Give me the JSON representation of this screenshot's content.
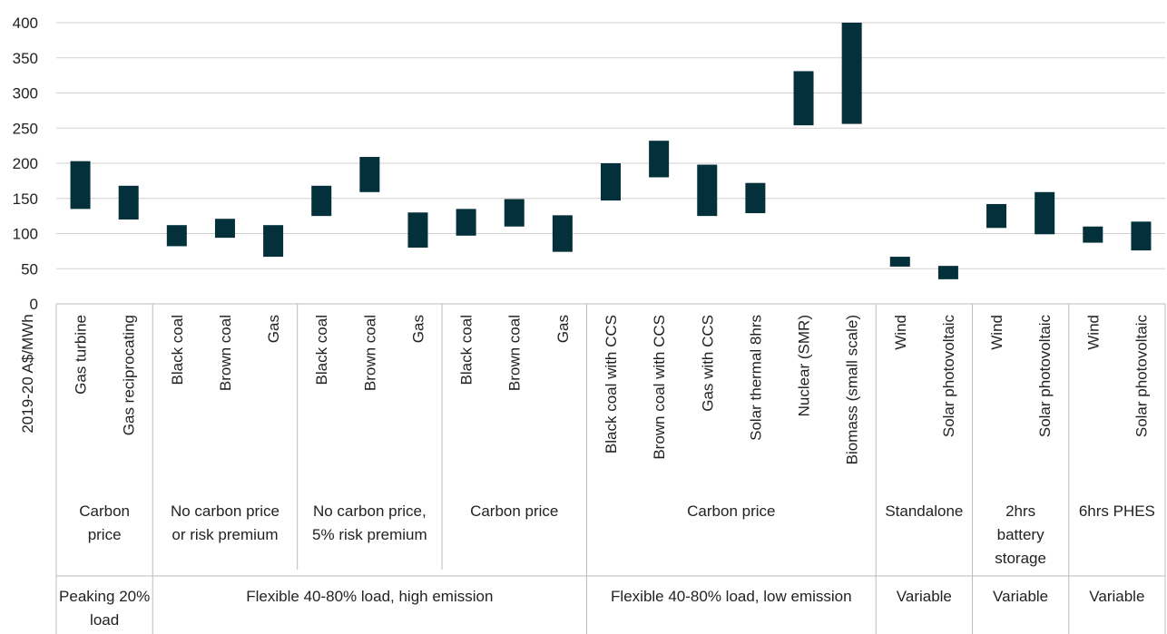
{
  "chart_data": {
    "type": "bar",
    "subtype": "floating-range",
    "ylabel": "2019-20 A$/MWh",
    "ylim": [
      0,
      400
    ],
    "yticks": [
      0,
      50,
      100,
      150,
      200,
      250,
      300,
      350,
      400
    ],
    "grid": true,
    "bar_color": "#03303a",
    "categories": [
      {
        "label": "Gas turbine",
        "low": 135,
        "high": 203
      },
      {
        "label": "Gas reciprocating",
        "low": 120,
        "high": 168
      },
      {
        "label": "Black coal",
        "low": 82,
        "high": 112
      },
      {
        "label": "Brown coal",
        "low": 94,
        "high": 121
      },
      {
        "label": "Gas",
        "low": 67,
        "high": 112
      },
      {
        "label": "Black coal",
        "low": 125,
        "high": 168
      },
      {
        "label": "Brown coal",
        "low": 159,
        "high": 209
      },
      {
        "label": "Gas",
        "low": 80,
        "high": 130
      },
      {
        "label": "Black coal",
        "low": 97,
        "high": 135
      },
      {
        "label": "Brown coal",
        "low": 110,
        "high": 149
      },
      {
        "label": "Gas",
        "low": 74,
        "high": 126
      },
      {
        "label": "Black coal with CCS",
        "low": 147,
        "high": 200
      },
      {
        "label": "Brown coal with CCS",
        "low": 180,
        "high": 232
      },
      {
        "label": "Gas with CCS",
        "low": 125,
        "high": 198
      },
      {
        "label": "Solar thermal 8hrs",
        "low": 129,
        "high": 172
      },
      {
        "label": "Nuclear (SMR)",
        "low": 254,
        "high": 331
      },
      {
        "label": "Biomass (small scale)",
        "low": 256,
        "high": 400
      },
      {
        "label": "Wind",
        "low": 53,
        "high": 67
      },
      {
        "label": "Solar photovoltaic",
        "low": 35,
        "high": 54
      },
      {
        "label": "Wind",
        "low": 108,
        "high": 142
      },
      {
        "label": "Solar photovoltaic",
        "low": 99,
        "high": 159
      },
      {
        "label": "Wind",
        "low": 87,
        "high": 110
      },
      {
        "label": "Solar photovoltaic",
        "low": 76,
        "high": 117
      }
    ],
    "subgroups": [
      {
        "label": "Carbon price",
        "span": 2
      },
      {
        "label": "No carbon price or risk premium",
        "span": 3
      },
      {
        "label": "No carbon price, 5% risk premium",
        "span": 3
      },
      {
        "label": "Carbon price",
        "span": 3
      },
      {
        "label": "Carbon price",
        "span": 6
      },
      {
        "label": "Standalone",
        "span": 2
      },
      {
        "label": "2hrs battery storage",
        "span": 2
      },
      {
        "label": "6hrs PHES",
        "span": 2
      }
    ],
    "groups": [
      {
        "label": "Peaking 20% load",
        "span": 2
      },
      {
        "label": "Flexible 40-80% load, high emission",
        "span": 9
      },
      {
        "label": "Flexible 40-80% load, low emission",
        "span": 6
      },
      {
        "label": "Variable",
        "span": 2
      },
      {
        "label": "Variable",
        "span": 2
      },
      {
        "label": "Variable",
        "span": 2
      }
    ]
  }
}
